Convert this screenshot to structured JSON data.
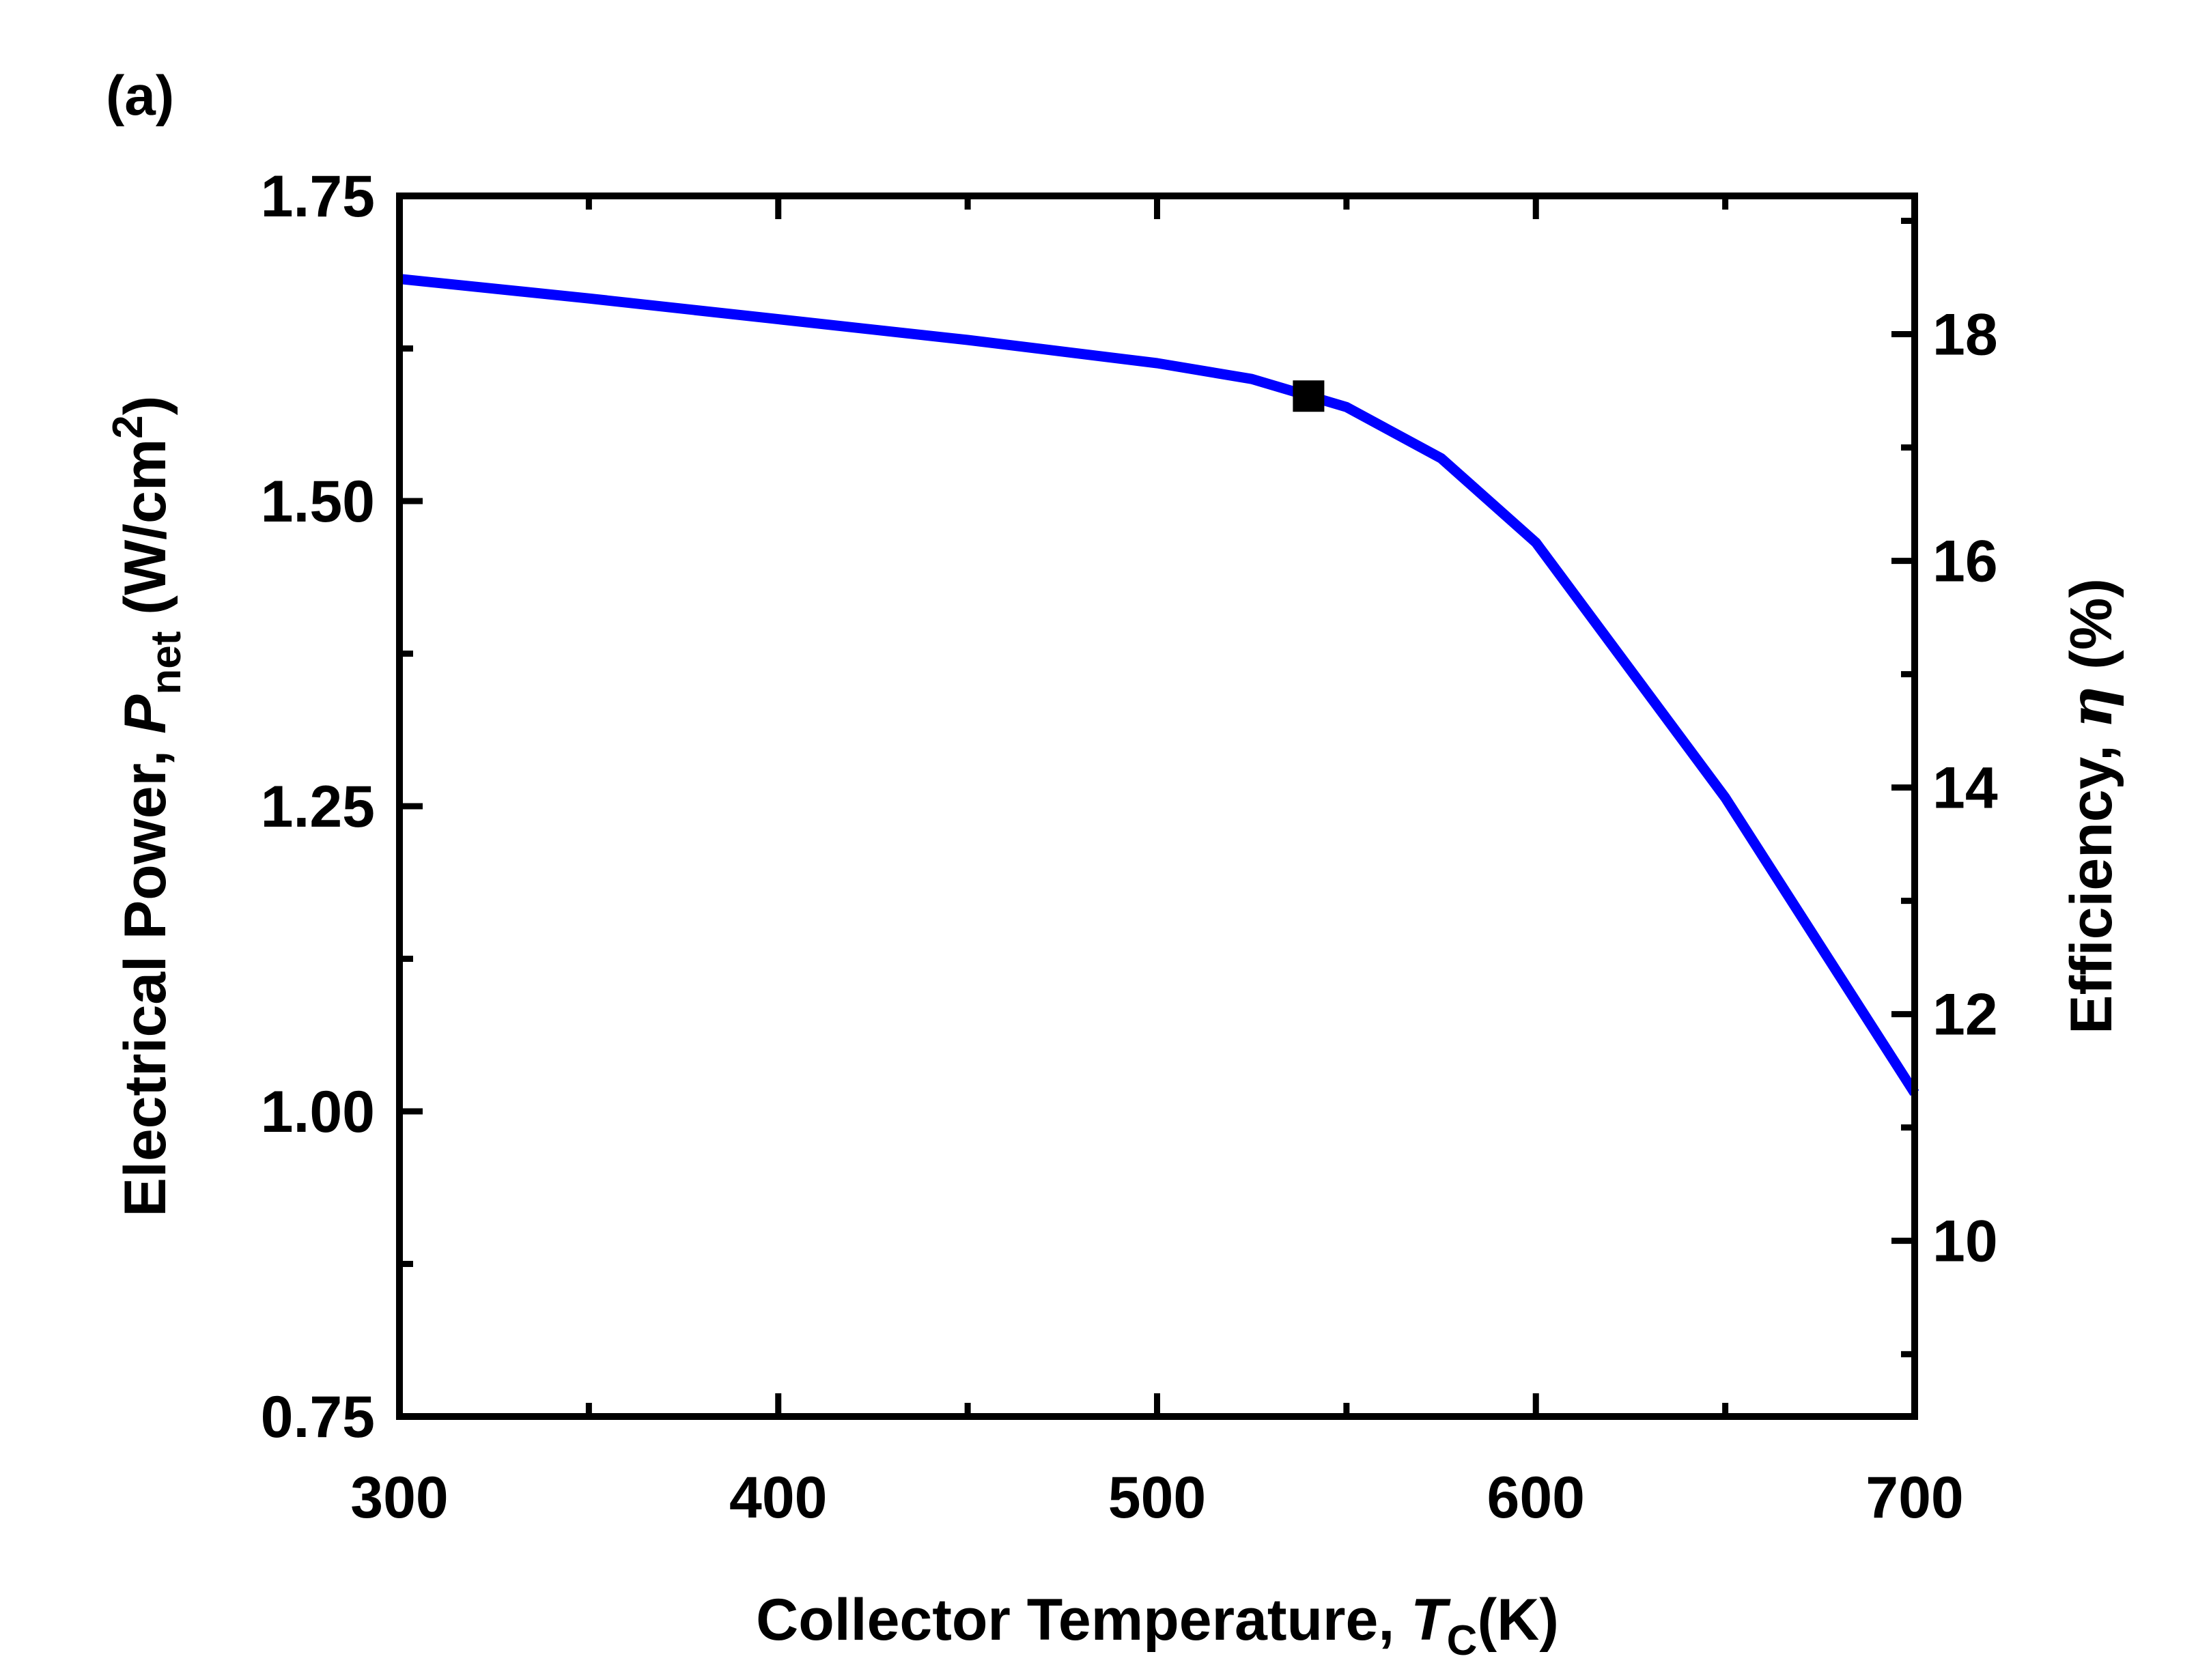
{
  "panel_label": "(a)",
  "chart_data": {
    "type": "line",
    "x_axis": {
      "label_main": "Collector Temperature, ",
      "label_symbol": "T",
      "label_subscript": "C",
      "label_unit": "(K)",
      "range": [
        300,
        700
      ],
      "ticks": [
        "300",
        "400",
        "500",
        "600",
        "700"
      ],
      "tick_values": [
        300,
        400,
        500,
        600,
        700
      ],
      "minor_ticks": [
        350,
        450,
        550,
        650
      ]
    },
    "y_left_axis": {
      "label_main": "Electrical Power, ",
      "label_symbol": "P",
      "label_subscript": "net",
      "label_unit": " (W/cm",
      "label_superscript": "2",
      "label_close": ")",
      "range": [
        0.75,
        1.75
      ],
      "ticks": [
        "0.75",
        "1.00",
        "1.25",
        "1.50",
        "1.75"
      ],
      "tick_values": [
        0.75,
        1.0,
        1.25,
        1.5,
        1.75
      ],
      "minor_ticks": [
        0.875,
        1.125,
        1.375,
        1.625
      ]
    },
    "y_right_axis": {
      "label_main": "Efficiency, ",
      "label_symbol": "η",
      "label_unit": " (%)",
      "range": [
        8.45,
        19.22
      ],
      "ticks": [
        "10",
        "12",
        "14",
        "16",
        "18"
      ],
      "tick_values": [
        10,
        12,
        14,
        16,
        18
      ],
      "minor_ticks": [
        9,
        11,
        13,
        15,
        17,
        19
      ]
    },
    "series": [
      {
        "name": "Electrical Power",
        "color": "#0000ff",
        "x": [
          300,
          350,
          400,
          450,
          500,
          525,
          550,
          575,
          600,
          650,
          700
        ],
        "y": [
          1.682,
          1.666,
          1.649,
          1.632,
          1.613,
          1.6,
          1.577,
          1.535,
          1.466,
          1.257,
          1.015
        ]
      }
    ],
    "marker": {
      "shape": "square",
      "color": "#000000",
      "x": 540,
      "y": 1.586
    }
  }
}
